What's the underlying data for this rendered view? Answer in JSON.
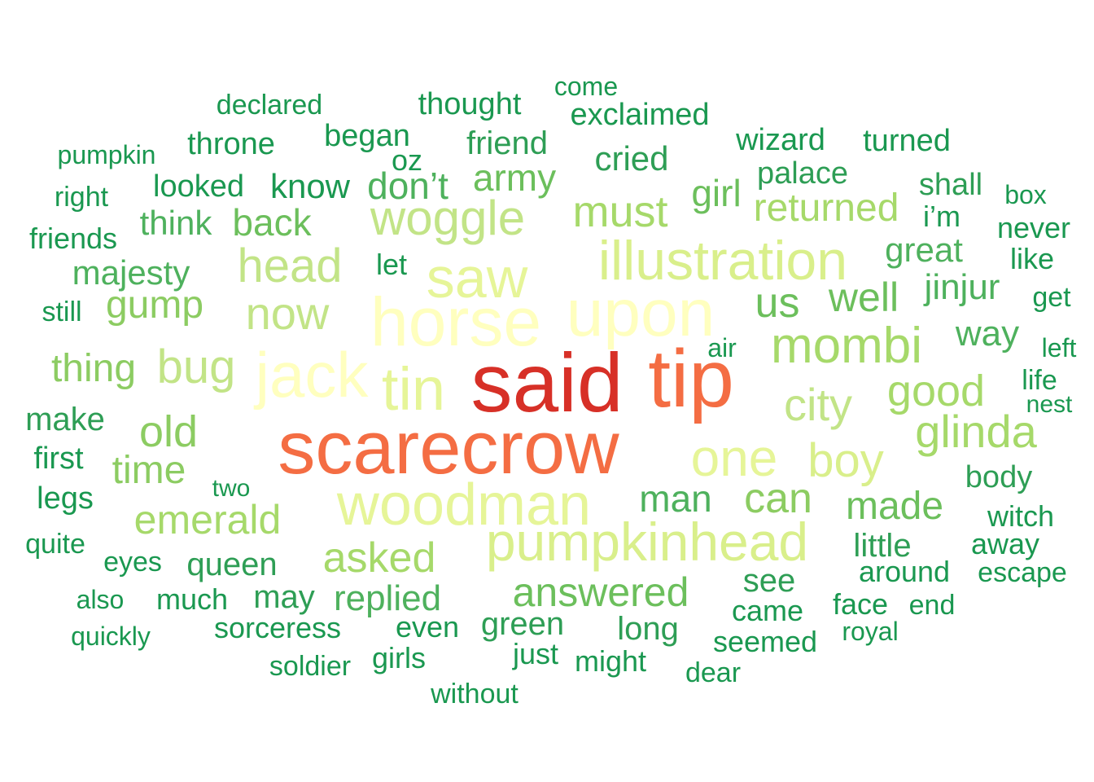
{
  "words": [
    "said",
    "tip",
    "scarecrow",
    "horse",
    "upon",
    "saw",
    "jack",
    "tin",
    "woodman",
    "pumpkinhead",
    "illustration",
    "woggle",
    "one",
    "mombi",
    "head",
    "now",
    "bug",
    "boy",
    "city",
    "glinda",
    "good",
    "must",
    "emerald",
    "asked",
    "answered",
    "can",
    "us",
    "well",
    "returned",
    "old",
    "gump",
    "time",
    "thing",
    "made",
    "man",
    "back",
    "think",
    "majesty",
    "army",
    "don’t",
    "girl",
    "great",
    "jinjur",
    "way",
    "queen",
    "replied",
    "green",
    "may",
    "see",
    "little",
    "around",
    "long",
    "came",
    "face",
    "body",
    "witch",
    "away",
    "make",
    "first",
    "legs",
    "still",
    "quite",
    "eyes",
    "much",
    "sorceress",
    "even",
    "girls",
    "just",
    "might",
    "seemed",
    "royal",
    "end",
    "escape",
    "dear",
    "soldier",
    "without",
    "quickly",
    "also",
    "two",
    "air",
    "left",
    "life",
    "nest",
    "get",
    "like",
    "never",
    "i’m",
    "box",
    "shall",
    "palace",
    "wizard",
    "turned",
    "cried",
    "friend",
    "exclaimed",
    "come",
    "thought",
    "began",
    "oz",
    "throne",
    "declared",
    "pumpkin",
    "right",
    "looked",
    "know",
    "friends",
    "let"
  ]
}
